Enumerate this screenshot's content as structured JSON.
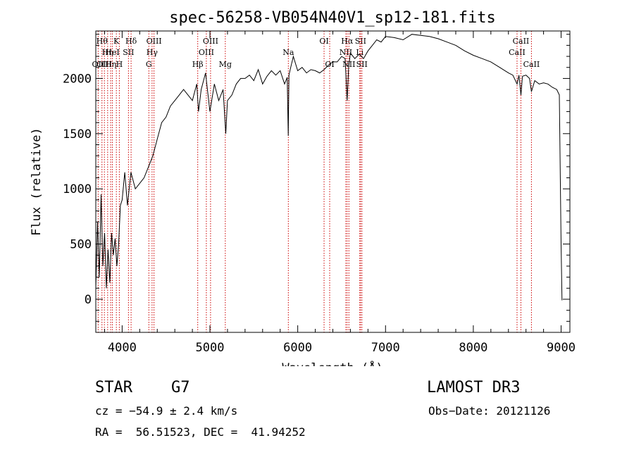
{
  "chart_data": {
    "type": "line",
    "title": "spec-56258-VB054N40V1_sp12-181.fits",
    "xlabel": "Wavelength (Å)",
    "ylabel": "Flux (relative)",
    "xlim": [
      3700,
      9100
    ],
    "ylim": [
      -300,
      2430
    ],
    "x_ticks": [
      4000,
      5000,
      6000,
      7000,
      8000,
      9000
    ],
    "x_tick_labels": [
      "4000",
      "5000",
      "6000",
      "7000",
      "8000",
      "9000"
    ],
    "y_ticks": [
      0,
      500,
      1000,
      1500,
      2000
    ],
    "y_tick_labels": [
      "0",
      "500",
      "1000",
      "1500",
      "2000"
    ],
    "grid": false,
    "series": [
      {
        "name": "spectrum",
        "x": [
          3700,
          3720,
          3740,
          3760,
          3780,
          3800,
          3820,
          3840,
          3860,
          3880,
          3900,
          3920,
          3940,
          3960,
          3980,
          4000,
          4030,
          4060,
          4100,
          4150,
          4200,
          4250,
          4300,
          4350,
          4400,
          4450,
          4500,
          4550,
          4600,
          4650,
          4700,
          4750,
          4800,
          4850,
          4870,
          4900,
          4950,
          5000,
          5050,
          5100,
          5150,
          5180,
          5200,
          5250,
          5300,
          5350,
          5400,
          5450,
          5500,
          5550,
          5600,
          5650,
          5700,
          5750,
          5800,
          5850,
          5880,
          5892,
          5900,
          5920,
          5950,
          6000,
          6050,
          6100,
          6150,
          6200,
          6250,
          6300,
          6350,
          6400,
          6450,
          6500,
          6540,
          6563,
          6580,
          6600,
          6650,
          6700,
          6750,
          6800,
          6850,
          6900,
          6950,
          7000,
          7100,
          7200,
          7300,
          7400,
          7500,
          7600,
          7700,
          7800,
          7900,
          8000,
          8100,
          8200,
          8300,
          8400,
          8450,
          8498,
          8520,
          8542,
          8560,
          8600,
          8640,
          8662,
          8700,
          8750,
          8800,
          8850,
          8900,
          8950,
          8980,
          9000,
          9010
        ],
        "y": [
          100,
          700,
          200,
          950,
          300,
          600,
          100,
          450,
          150,
          600,
          400,
          550,
          300,
          500,
          850,
          900,
          1150,
          850,
          1150,
          1000,
          1050,
          1100,
          1200,
          1300,
          1450,
          1600,
          1650,
          1750,
          1800,
          1850,
          1900,
          1850,
          1800,
          1950,
          1700,
          1900,
          2050,
          1700,
          1950,
          1800,
          1900,
          1500,
          1800,
          1850,
          1950,
          2000,
          2000,
          2030,
          1980,
          2080,
          1950,
          2020,
          2070,
          2030,
          2070,
          1950,
          2010,
          1480,
          2030,
          2100,
          2200,
          2070,
          2100,
          2050,
          2080,
          2070,
          2050,
          2080,
          2120,
          2150,
          2150,
          2200,
          2180,
          1800,
          2100,
          2230,
          2180,
          2220,
          2180,
          2250,
          2300,
          2350,
          2330,
          2380,
          2370,
          2350,
          2400,
          2390,
          2380,
          2360,
          2330,
          2300,
          2250,
          2210,
          2180,
          2150,
          2100,
          2050,
          2030,
          1950,
          2030,
          1850,
          2020,
          2030,
          2000,
          1880,
          1980,
          1950,
          1960,
          1950,
          1920,
          1900,
          1850,
          500,
          -10
        ]
      }
    ],
    "line_markers": [
      {
        "wl": 3727,
        "label": "OII",
        "row": 3
      },
      {
        "wl": 3770,
        "label": "Hθ",
        "row": 1
      },
      {
        "wl": 3798,
        "label": "OIII",
        "row": 3
      },
      {
        "wl": 3835,
        "label": "Hη",
        "row": 2
      },
      {
        "wl": 3869,
        "label": "Hη",
        "row": 3
      },
      {
        "wl": 3889,
        "label": "HeI",
        "row": 2
      },
      {
        "wl": 3934,
        "label": "K",
        "row": 1
      },
      {
        "wl": 3968,
        "label": "H",
        "row": 3
      },
      {
        "wl": 4072,
        "label": "SII",
        "row": 2
      },
      {
        "wl": 4102,
        "label": "Hδ",
        "row": 1
      },
      {
        "wl": 4304,
        "label": "G",
        "row": 3
      },
      {
        "wl": 4341,
        "label": "Hγ",
        "row": 2
      },
      {
        "wl": 4363,
        "label": "OIII",
        "row": 1
      },
      {
        "wl": 4861,
        "label": "Hβ",
        "row": 3
      },
      {
        "wl": 4959,
        "label": "OIII",
        "row": 2
      },
      {
        "wl": 5007,
        "label": "OIII",
        "row": 1
      },
      {
        "wl": 5175,
        "label": "Mg",
        "row": 3
      },
      {
        "wl": 5893,
        "label": "Na",
        "row": 2
      },
      {
        "wl": 6300,
        "label": "OI",
        "row": 1
      },
      {
        "wl": 6364,
        "label": "OI",
        "row": 3
      },
      {
        "wl": 6548,
        "label": "NII",
        "row": 2
      },
      {
        "wl": 6563,
        "label": "Hα",
        "row": 1
      },
      {
        "wl": 6583,
        "label": "NII",
        "row": 3
      },
      {
        "wl": 6707,
        "label": "Li",
        "row": 2
      },
      {
        "wl": 6716,
        "label": "SII",
        "row": 1
      },
      {
        "wl": 6731,
        "label": "SII",
        "row": 3
      },
      {
        "wl": 8498,
        "label": "CaII",
        "row": 2
      },
      {
        "wl": 8542,
        "label": "CaII",
        "row": 1
      },
      {
        "wl": 8662,
        "label": "CaII",
        "row": 3
      }
    ]
  },
  "info": {
    "class": "STAR",
    "subclass": "G7",
    "survey": "LAMOST DR3",
    "cz": "cz = −54.9 ± 2.4 km/s",
    "obs_date": "Obs−Date: 20121126",
    "radec": "RA =  56.51523, DEC =  41.94252"
  },
  "colors": {
    "foreground": "#000000",
    "marker": "#cc0000",
    "background": "#ffffff"
  }
}
